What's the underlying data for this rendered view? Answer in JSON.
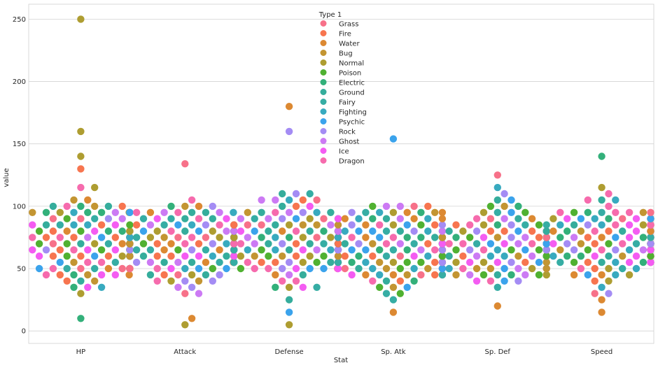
{
  "chart_data": {
    "type": "scatter",
    "subtype": "swarm",
    "xlabel": "Stat",
    "ylabel": "value",
    "categories": [
      "HP",
      "Attack",
      "Defense",
      "Sp. Atk",
      "Sp. Def",
      "Speed"
    ],
    "ylim": [
      -10,
      262
    ],
    "yticks": [
      0,
      50,
      100,
      150,
      200,
      250
    ],
    "grid": true,
    "legend": {
      "title": "Type 1",
      "placement": "top-center",
      "entries": [
        {
          "name": "Grass",
          "color": "#f77189"
        },
        {
          "name": "Fire",
          "color": "#f7754f"
        },
        {
          "name": "Water",
          "color": "#dc8932"
        },
        {
          "name": "Bug",
          "color": "#c39532"
        },
        {
          "name": "Normal",
          "color": "#ae9d31"
        },
        {
          "name": "Poison",
          "color": "#50b131"
        },
        {
          "name": "Electric",
          "color": "#33b07a"
        },
        {
          "name": "Ground",
          "color": "#35ad9c"
        },
        {
          "name": "Fairy",
          "color": "#36ada4"
        },
        {
          "name": "Fighting",
          "color": "#38aabf"
        },
        {
          "name": "Psychic",
          "color": "#3ba3ec"
        },
        {
          "name": "Rock",
          "color": "#a48cf4"
        },
        {
          "name": "Ghost",
          "color": "#cc7af4"
        },
        {
          "name": "Ice",
          "color": "#f45cf2"
        },
        {
          "name": "Dragon",
          "color": "#f66bad"
        }
      ]
    },
    "notable_points": [
      {
        "category": "HP",
        "type": "Normal",
        "value": 250
      },
      {
        "category": "HP",
        "type": "Normal",
        "value": 160
      },
      {
        "category": "HP",
        "type": "Normal",
        "value": 140
      },
      {
        "category": "HP",
        "type": "Normal",
        "value": 115
      },
      {
        "category": "HP",
        "type": "Fire",
        "value": 130
      },
      {
        "category": "HP",
        "type": "Electric",
        "value": 10
      },
      {
        "category": "Attack",
        "type": "Grass",
        "value": 134
      },
      {
        "category": "Attack",
        "type": "Water",
        "value": 10
      },
      {
        "category": "Attack",
        "type": "Normal",
        "value": 5
      },
      {
        "category": "Defense",
        "type": "Water",
        "value": 180
      },
      {
        "category": "Defense",
        "type": "Rock",
        "value": 160
      },
      {
        "category": "Defense",
        "type": "Normal",
        "value": 5
      },
      {
        "category": "Defense",
        "type": "Psychic",
        "value": 15
      },
      {
        "category": "Sp. Atk",
        "type": "Psychic",
        "value": 154
      },
      {
        "category": "Sp. Atk",
        "type": "Water",
        "value": 15
      },
      {
        "category": "Sp. Def",
        "type": "Grass",
        "value": 125
      },
      {
        "category": "Sp. Def",
        "type": "Water",
        "value": 20
      },
      {
        "category": "Speed",
        "type": "Electric",
        "value": 140
      },
      {
        "category": "Speed",
        "type": "Water",
        "value": 15
      }
    ],
    "distribution_ranges": {
      "HP": [
        10,
        250
      ],
      "Attack": [
        5,
        134
      ],
      "Defense": [
        5,
        180
      ],
      "Sp. Atk": [
        15,
        154
      ],
      "Sp. Def": [
        20,
        125
      ],
      "Speed": [
        15,
        140
      ]
    }
  }
}
